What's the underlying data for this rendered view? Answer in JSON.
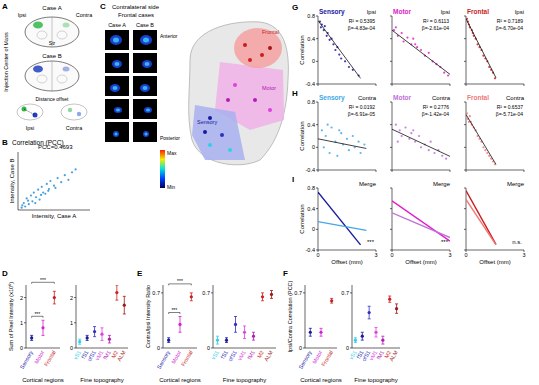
{
  "panel_letters": [
    "A",
    "B",
    "C",
    "D",
    "E",
    "F",
    "G",
    "H",
    "I"
  ],
  "panel_a": {
    "case_a": {
      "title": "Case A",
      "ipsi": "Ipsi",
      "contra": "Contra",
      "striatum": "Str"
    },
    "case_b": {
      "title": "Case B"
    },
    "side_label": "Injection Center of Mass",
    "offset": {
      "label": "Distance offset",
      "ipsi": "Ipsi",
      "contra": "Contra"
    }
  },
  "panel_c": {
    "title": "Contralateral side",
    "subtitle": "Frontal cases",
    "columns": [
      "Case A",
      "Case B"
    ],
    "anterior": "Anterior",
    "posterior": "Posterior",
    "colorbar": {
      "max": "Max",
      "min": "Min"
    },
    "map_regions": [
      "Frontal",
      "Motor",
      "Sensory"
    ]
  },
  "chart_data": [
    {
      "type": "scatter",
      "title": "Correlation (PCC)",
      "annotations": [
        "PCC=0.4693"
      ],
      "xlabel": "Intensity, Case A",
      "ylabel": "Intensity, Case B",
      "xlim": [
        0,
        1
      ],
      "ylim": [
        0,
        1
      ],
      "tick_labels": false,
      "color": "#2a8fd8",
      "x": [
        0.05,
        0.08,
        0.1,
        0.12,
        0.15,
        0.18,
        0.2,
        0.22,
        0.25,
        0.28,
        0.3,
        0.33,
        0.35,
        0.38,
        0.4,
        0.43,
        0.45,
        0.5,
        0.55,
        0.6,
        0.65,
        0.7,
        0.75,
        0.8,
        0.06,
        0.14,
        0.24,
        0.32,
        0.42,
        0.52
      ],
      "values": [
        0.04,
        0.12,
        0.06,
        0.2,
        0.1,
        0.25,
        0.15,
        0.3,
        0.22,
        0.35,
        0.18,
        0.4,
        0.3,
        0.28,
        0.45,
        0.36,
        0.5,
        0.42,
        0.55,
        0.48,
        0.6,
        0.52,
        0.65,
        0.7,
        0.08,
        0.16,
        0.12,
        0.26,
        0.33,
        0.38
      ]
    },
    {
      "type": "errorbar",
      "xlabel": "Cortical regions",
      "ylabel": "Sum of Pixel Intensity (x10⁶)",
      "categories": [
        "Sensory",
        "Motor",
        "Frontal"
      ],
      "values": [
        0.4,
        0.8,
        2.0
      ],
      "errors": [
        0.1,
        0.3,
        0.25
      ],
      "colors": [
        "#1a1aa0",
        "#d020d0",
        "#c81e1e"
      ],
      "ylim": [
        0,
        2.5
      ],
      "yticks": [
        0,
        1,
        2
      ],
      "annotations": [
        {
          "text": "***",
          "between": [
            "Sensory",
            "Motor"
          ]
        },
        {
          "text": "***",
          "between": [
            "Sensory",
            "Frontal"
          ]
        }
      ]
    },
    {
      "type": "errorbar",
      "xlabel": "Fine topography",
      "categories": [
        "vS1",
        "fS1",
        "ofS1",
        "vM1",
        "fM1",
        "M2",
        "ALM"
      ],
      "values": [
        0.25,
        0.4,
        0.65,
        0.55,
        0.35,
        2.2,
        1.7
      ],
      "errors": [
        0.1,
        0.1,
        0.2,
        0.25,
        0.15,
        0.3,
        0.35
      ],
      "colors": [
        "#30d0e8",
        "#1a1aa0",
        "#3030c0",
        "#e040e0",
        "#b020b0",
        "#d02020",
        "#a01818"
      ],
      "ylim": [
        0,
        2.5
      ],
      "yticks": [
        0,
        1,
        2
      ]
    },
    {
      "type": "errorbar",
      "xlabel": "Cortical regions",
      "ylabel": "Contra/Ipsi Intensity Ratio",
      "categories": [
        "Sensory",
        "Motor",
        "Frontal"
      ],
      "values": [
        0.1,
        0.3,
        0.65
      ],
      "errors": [
        0.03,
        0.1,
        0.05
      ],
      "colors": [
        "#1a1aa0",
        "#d020d0",
        "#c81e1e"
      ],
      "ylim": [
        0,
        0.8
      ],
      "yticks": [
        0,
        0.7
      ],
      "annotations": [
        {
          "text": "***",
          "between": [
            "Sensory",
            "Motor"
          ]
        },
        {
          "text": "***",
          "between": [
            "Sensory",
            "Frontal"
          ]
        }
      ]
    },
    {
      "type": "errorbar",
      "xlabel": "Fine topography",
      "categories": [
        "vS1",
        "fS1",
        "ofS1",
        "vM1",
        "fM1",
        "M2",
        "ALM"
      ],
      "values": [
        0.1,
        0.1,
        0.3,
        0.2,
        0.15,
        0.65,
        0.68
      ],
      "errors": [
        0.05,
        0.03,
        0.1,
        0.08,
        0.05,
        0.05,
        0.05
      ],
      "colors": [
        "#30d0e8",
        "#1a1aa0",
        "#3030c0",
        "#e040e0",
        "#b020b0",
        "#d02020",
        "#a01818"
      ],
      "ylim": [
        0,
        0.8
      ],
      "yticks": [
        0,
        0.7
      ]
    },
    {
      "type": "errorbar",
      "xlabel": "Cortical regions",
      "ylabel": "Ipsi/Contra Correlation (PCC)",
      "categories": [
        "Sensory",
        "Motor",
        "Frontal"
      ],
      "values": [
        0.2,
        0.2,
        0.6
      ],
      "errors": [
        0.05,
        0.05,
        0.03
      ],
      "colors": [
        "#1a1aa0",
        "#d020d0",
        "#c81e1e"
      ],
      "ylim": [
        0,
        0.8
      ],
      "yticks": [
        0,
        0.7
      ]
    },
    {
      "type": "errorbar",
      "xlabel": "Fine topography",
      "categories": [
        "vS1",
        "fS1",
        "ofS1",
        "vM1",
        "fM1",
        "M2",
        "ALM"
      ],
      "values": [
        0.1,
        0.15,
        0.45,
        0.2,
        0.1,
        0.62,
        0.5
      ],
      "errors": [
        0.03,
        0.05,
        0.08,
        0.06,
        0.05,
        0.04,
        0.06
      ],
      "colors": [
        "#30d0e8",
        "#1a1aa0",
        "#3030c0",
        "#e040e0",
        "#b020b0",
        "#d02020",
        "#a01818"
      ],
      "ylim": [
        0,
        0.8
      ],
      "yticks": [
        0,
        0.7
      ]
    },
    {
      "type": "scatter",
      "title": "Sensory",
      "subtitle": "Ipsi",
      "annotations": [
        "R² = 0.5395",
        "β=-4.83e-04"
      ],
      "ylabel": "Correlation",
      "xlim": [
        0,
        3
      ],
      "ylim": [
        -0.4,
        0.8
      ],
      "xticks": [
        0,
        3
      ],
      "yticks": [
        -0.4,
        0,
        0.4,
        0.8
      ],
      "tick_labels": "y",
      "color": "#1a1aa0",
      "x": [
        0.1,
        0.15,
        0.2,
        0.3,
        0.35,
        0.45,
        0.5,
        0.6,
        0.7,
        0.8,
        0.9,
        1.0,
        1.1,
        1.2,
        1.4,
        1.6,
        1.8,
        2.1
      ],
      "values": [
        0.7,
        0.6,
        0.65,
        0.55,
        0.62,
        0.45,
        0.5,
        0.38,
        0.4,
        0.3,
        0.2,
        0.25,
        0.12,
        0.05,
        0.0,
        -0.1,
        -0.15,
        -0.25
      ],
      "fit": {
        "x": [
          0,
          2.2
        ],
        "values": [
          0.72,
          -0.3
        ]
      }
    },
    {
      "type": "scatter",
      "title": "Motor",
      "subtitle": "Ipsi",
      "annotations": [
        "R² = 0.6113",
        "β=-2.61e-04"
      ],
      "xlim": [
        0,
        3
      ],
      "ylim": [
        -0.4,
        0.8
      ],
      "xticks": [
        0,
        3
      ],
      "yticks": [
        -0.4,
        0,
        0.4,
        0.8
      ],
      "tick_labels": false,
      "color": "#e020c8",
      "x": [
        0.1,
        0.2,
        0.3,
        0.5,
        0.6,
        0.8,
        1.0,
        1.1,
        1.3,
        1.5,
        1.7,
        1.9,
        2.1,
        2.3,
        2.5,
        2.7,
        2.9,
        1.2
      ],
      "values": [
        0.55,
        0.6,
        0.45,
        0.5,
        0.35,
        0.42,
        0.3,
        0.4,
        0.25,
        0.2,
        0.1,
        0.15,
        0.0,
        -0.05,
        -0.1,
        -0.2,
        -0.25,
        0.3
      ],
      "fit": {
        "x": [
          0,
          3
        ],
        "values": [
          0.55,
          -0.23
        ]
      }
    },
    {
      "type": "scatter",
      "title": "Frontal",
      "subtitle": "Ipsi",
      "annotations": [
        "R² = 0.7189",
        "β=-6.70e-04"
      ],
      "xlim": [
        0,
        3
      ],
      "ylim": [
        -0.4,
        0.8
      ],
      "xticks": [
        0,
        3
      ],
      "yticks": [
        -0.4,
        0,
        0.4,
        0.8
      ],
      "tick_labels": false,
      "color": "#c81e1e",
      "x": [
        0.05,
        0.1,
        0.15,
        0.2,
        0.3,
        0.35,
        0.4,
        0.5,
        0.6,
        0.7,
        0.8,
        0.9,
        1.0,
        1.1,
        1.2,
        1.3,
        1.4,
        1.5
      ],
      "values": [
        0.75,
        0.7,
        0.65,
        0.6,
        0.55,
        0.5,
        0.45,
        0.4,
        0.3,
        0.25,
        0.2,
        0.1,
        0.05,
        0.0,
        -0.1,
        -0.15,
        -0.2,
        -0.3
      ],
      "fit": {
        "x": [
          0,
          1.55
        ],
        "values": [
          0.75,
          -0.29
        ]
      }
    },
    {
      "type": "scatter",
      "title": "Sensory",
      "subtitle": "Contra",
      "annotations": [
        "R² = 0.0192",
        "β=-6.91e-05"
      ],
      "ylabel": "Correlation",
      "xlim": [
        0,
        3
      ],
      "ylim": [
        -0.4,
        0.8
      ],
      "xticks": [
        0,
        3
      ],
      "yticks": [
        -0.4,
        0,
        0.4,
        0.8
      ],
      "tick_labels": "y",
      "color": "#40a8e8",
      "x": [
        0.2,
        0.3,
        0.4,
        0.6,
        0.7,
        0.9,
        1.0,
        1.2,
        1.3,
        1.5,
        1.6,
        1.8,
        1.9,
        2.1,
        2.2,
        2.4,
        0.5,
        1.1
      ],
      "values": [
        0.3,
        0.0,
        0.2,
        -0.1,
        0.35,
        0.1,
        -0.15,
        0.25,
        0.05,
        0.15,
        -0.05,
        0.2,
        0.0,
        0.1,
        -0.1,
        0.05,
        0.4,
        0.3
      ],
      "fit": {
        "x": [
          0,
          2.5
        ],
        "values": [
          0.15,
          -0.02
        ]
      }
    },
    {
      "type": "scatter",
      "title": "Motor",
      "subtitle": "Contra",
      "annotations": [
        "R² = 0.2776",
        "β=-1.42e-04"
      ],
      "xlim": [
        0,
        3
      ],
      "ylim": [
        -0.4,
        0.8
      ],
      "xticks": [
        0,
        3
      ],
      "yticks": [
        -0.4,
        0,
        0.4,
        0.8
      ],
      "tick_labels": false,
      "color": "#c070d8",
      "x": [
        0.2,
        0.4,
        0.5,
        0.7,
        0.9,
        1.0,
        1.2,
        1.4,
        1.5,
        1.7,
        1.9,
        2.0,
        2.2,
        2.4,
        2.6,
        2.8,
        0.3,
        1.1
      ],
      "values": [
        0.4,
        0.3,
        0.2,
        0.35,
        0.15,
        0.25,
        0.1,
        0.2,
        0.0,
        0.05,
        -0.05,
        0.1,
        -0.1,
        -0.05,
        -0.15,
        -0.2,
        0.1,
        0.3
      ],
      "fit": {
        "x": [
          0,
          3
        ],
        "values": [
          0.32,
          -0.16
        ]
      }
    },
    {
      "type": "scatter",
      "title": "Frontal",
      "subtitle": "Contra",
      "annotations": [
        "R² = 0.6537",
        "β=-5.71e-04"
      ],
      "xlim": [
        0,
        3
      ],
      "ylim": [
        -0.4,
        0.8
      ],
      "xticks": [
        0,
        3
      ],
      "yticks": [
        -0.4,
        0,
        0.4,
        0.8
      ],
      "tick_labels": false,
      "color": "#f07878",
      "x": [
        0.05,
        0.1,
        0.2,
        0.25,
        0.3,
        0.4,
        0.5,
        0.6,
        0.7,
        0.8,
        0.9,
        1.0,
        1.1,
        1.2,
        1.3,
        1.4,
        1.5,
        0.15
      ],
      "values": [
        0.6,
        0.5,
        0.55,
        0.45,
        0.4,
        0.35,
        0.3,
        0.2,
        0.15,
        0.1,
        0.0,
        -0.05,
        -0.1,
        -0.15,
        -0.2,
        -0.25,
        -0.3,
        0.45
      ],
      "fit": {
        "x": [
          0,
          1.55
        ],
        "values": [
          0.58,
          -0.3
        ]
      }
    },
    {
      "type": "line",
      "subtitle": "Merge",
      "annotations": [
        "***"
      ],
      "xlabel": "Offset (mm)",
      "ylabel": "Correlation",
      "xlim": [
        0,
        3
      ],
      "ylim": [
        -0.4,
        0.8
      ],
      "xticks": [
        0,
        3
      ],
      "yticks": [
        -0.4,
        0,
        0.4,
        0.8
      ],
      "tick_labels": true,
      "series": [
        {
          "color": "#1a1aa0",
          "x": [
            0,
            2.2
          ],
          "values": [
            0.72,
            -0.3
          ]
        },
        {
          "color": "#40a8e8",
          "x": [
            0,
            2.5
          ],
          "values": [
            0.15,
            -0.02
          ]
        }
      ]
    },
    {
      "type": "line",
      "subtitle": "Merge",
      "annotations": [
        "***"
      ],
      "xlabel": "Offset (mm)",
      "xlim": [
        0,
        3
      ],
      "ylim": [
        -0.4,
        0.8
      ],
      "xticks": [
        0,
        3
      ],
      "yticks": [
        -0.4,
        0,
        0.4,
        0.8
      ],
      "tick_labels": "x",
      "series": [
        {
          "color": "#e020c8",
          "x": [
            0,
            3
          ],
          "values": [
            0.55,
            -0.23
          ]
        },
        {
          "color": "#c070d8",
          "x": [
            0,
            3
          ],
          "values": [
            0.32,
            -0.16
          ]
        }
      ]
    },
    {
      "type": "line",
      "subtitle": "Merge",
      "annotations": [
        "n.s."
      ],
      "xlabel": "Offset (mm)",
      "xlim": [
        0,
        3
      ],
      "ylim": [
        -0.4,
        0.8
      ],
      "xticks": [
        0,
        3
      ],
      "yticks": [
        -0.4,
        0,
        0.4,
        0.8
      ],
      "tick_labels": "x",
      "series": [
        {
          "color": "#c81e1e",
          "x": [
            0,
            1.55
          ],
          "values": [
            0.75,
            -0.29
          ]
        },
        {
          "color": "#f07878",
          "x": [
            0,
            1.55
          ],
          "values": [
            0.58,
            -0.3
          ]
        }
      ]
    }
  ]
}
